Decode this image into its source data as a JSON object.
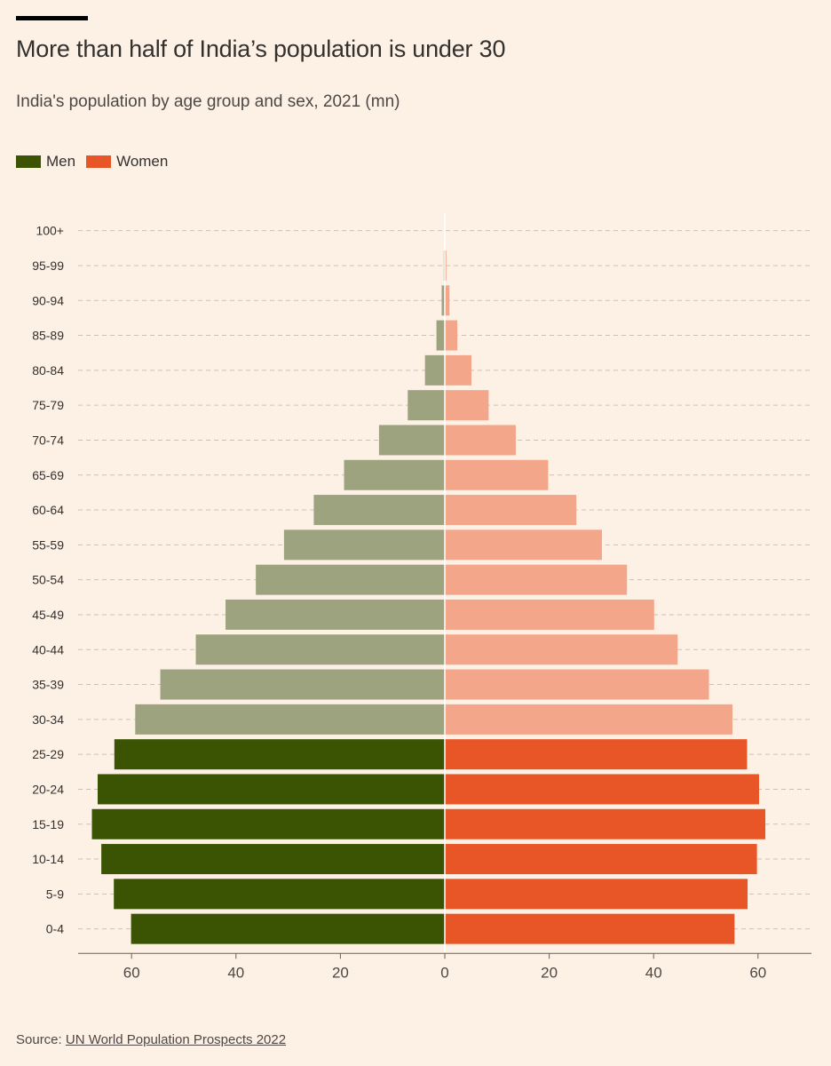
{
  "title": "More than half of India’s population is under 30",
  "subtitle": "India's population by age group and sex, 2021 (mn)",
  "legend": [
    {
      "label": "Men",
      "color": "#3b5404"
    },
    {
      "label": "Women",
      "color": "#e85628"
    }
  ],
  "colors": {
    "men_highlight": "#3b5404",
    "men_muted": "#9ea37f",
    "women_highlight": "#e85628",
    "women_muted": "#f4a68a"
  },
  "source": {
    "prefix": "Source: ",
    "link_text": "UN World Population Prospects 2022"
  },
  "chart_data": {
    "type": "bar",
    "orientation": "horizontal-population-pyramid",
    "categories": [
      "100+",
      "95-99",
      "90-94",
      "85-89",
      "80-84",
      "75-79",
      "70-74",
      "65-69",
      "60-64",
      "55-59",
      "50-54",
      "45-49",
      "40-44",
      "35-39",
      "30-34",
      "25-29",
      "20-24",
      "15-19",
      "10-14",
      "5-9",
      "0-4"
    ],
    "series": [
      {
        "name": "Men",
        "values": [
          0.02,
          0.2,
          0.6,
          1.6,
          3.8,
          7.1,
          12.6,
          19.3,
          25.1,
          30.8,
          36.2,
          42.0,
          47.7,
          54.5,
          59.3,
          63.3,
          66.5,
          67.6,
          65.8,
          63.4,
          60.1
        ]
      },
      {
        "name": "Women",
        "values": [
          0.05,
          0.3,
          0.9,
          2.4,
          5.1,
          8.4,
          13.6,
          19.8,
          25.2,
          30.1,
          34.9,
          40.1,
          44.6,
          50.6,
          55.1,
          57.9,
          60.2,
          61.4,
          59.8,
          58.0,
          55.5
        ]
      }
    ],
    "highlight_categories": [
      "25-29",
      "20-24",
      "15-19",
      "10-14",
      "5-9",
      "0-4"
    ],
    "x_ticks": [
      60,
      40,
      20,
      0,
      20,
      40,
      60
    ],
    "xlim": [
      -70,
      70
    ],
    "grid": "dashed horizontal",
    "legend_position": "top-left"
  }
}
